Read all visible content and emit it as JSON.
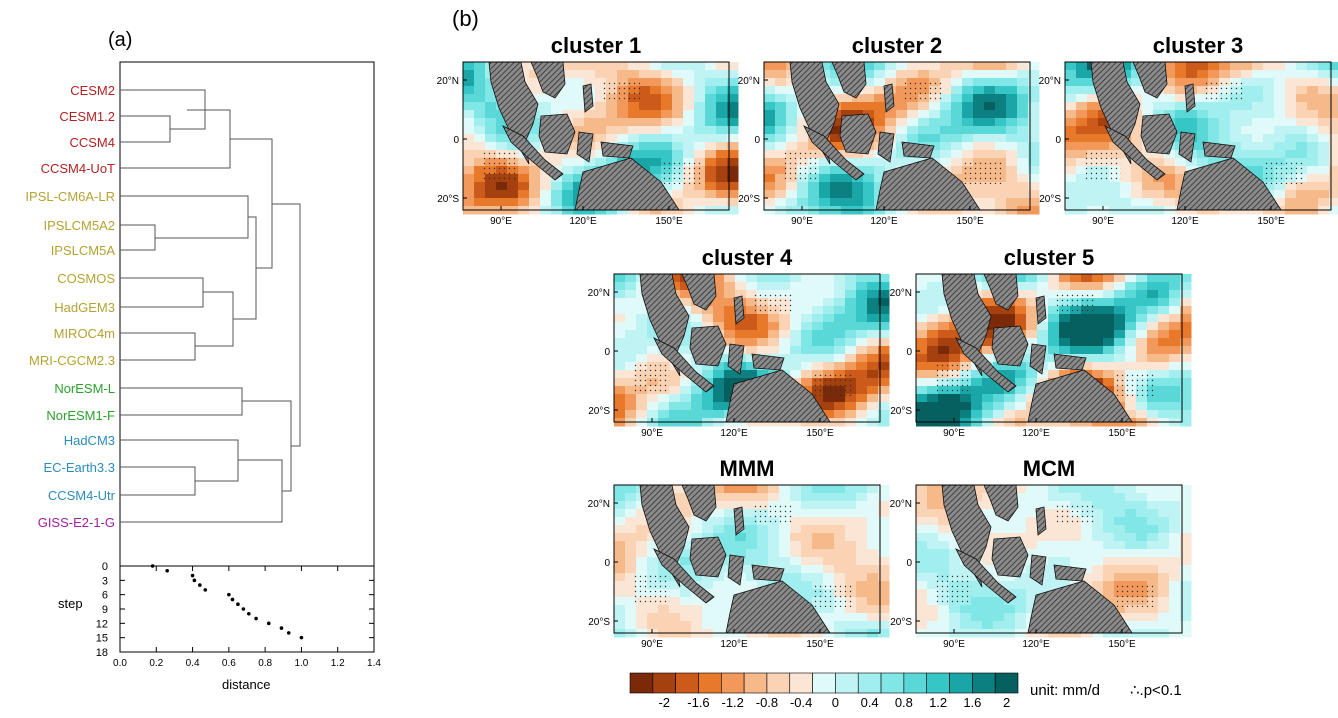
{
  "panel_a": {
    "label": "(a)",
    "models": [
      {
        "name": "CESM2",
        "color": "#b22222"
      },
      {
        "name": "CESM1.2",
        "color": "#b22222"
      },
      {
        "name": "CCSM4",
        "color": "#b22222"
      },
      {
        "name": "CCSM4-UoT",
        "color": "#b22222"
      },
      {
        "name": "IPSL-CM6A-LR",
        "color": "#b4a232"
      },
      {
        "name": "IPSLCM5A2",
        "color": "#b4a232"
      },
      {
        "name": "IPSLCM5A",
        "color": "#b4a232"
      },
      {
        "name": "COSMOS",
        "color": "#b4a232"
      },
      {
        "name": "HadGEM3",
        "color": "#b4a232"
      },
      {
        "name": "MIROC4m",
        "color": "#b4a232"
      },
      {
        "name": "MRI-CGCM2.3",
        "color": "#b4a232"
      },
      {
        "name": "NorESM-L",
        "color": "#2ca02c"
      },
      {
        "name": "NorESM1-F",
        "color": "#2ca02c"
      },
      {
        "name": "HadCM3",
        "color": "#2b8cbe"
      },
      {
        "name": "EC-Earth3.3",
        "color": "#2b8cbe"
      },
      {
        "name": "CCSM4-Utr",
        "color": "#2b8cbe"
      },
      {
        "name": "GISS-E2-1-G",
        "color": "#a020a0"
      }
    ]
  },
  "chart_data": [
    {
      "type": "scatter",
      "title": "",
      "xlabel": "distance",
      "ylabel": "step",
      "xlim": [
        0,
        1.4
      ],
      "ylim": [
        18,
        0
      ],
      "x_ticks": [
        "0.0",
        "0.2",
        "0.4",
        "0.6",
        "0.8",
        "1.0",
        "1.2",
        "1.4"
      ],
      "y_ticks": [
        "0",
        "3",
        "6",
        "9",
        "12",
        "15",
        "18"
      ],
      "points": [
        {
          "x": 0.18,
          "y": 0
        },
        {
          "x": 0.26,
          "y": 1
        },
        {
          "x": 0.4,
          "y": 2
        },
        {
          "x": 0.41,
          "y": 3
        },
        {
          "x": 0.44,
          "y": 4
        },
        {
          "x": 0.47,
          "y": 5
        },
        {
          "x": 0.6,
          "y": 6
        },
        {
          "x": 0.62,
          "y": 7
        },
        {
          "x": 0.65,
          "y": 8
        },
        {
          "x": 0.68,
          "y": 9
        },
        {
          "x": 0.71,
          "y": 10
        },
        {
          "x": 0.75,
          "y": 11
        },
        {
          "x": 0.82,
          "y": 12
        },
        {
          "x": 0.89,
          "y": 13
        },
        {
          "x": 0.93,
          "y": 14
        },
        {
          "x": 1.0,
          "y": 15
        }
      ]
    },
    {
      "type": "heatmap",
      "panel_label": "(b)",
      "maps": [
        {
          "title": "cluster 1"
        },
        {
          "title": "cluster 2"
        },
        {
          "title": "cluster 3"
        },
        {
          "title": "cluster 4"
        },
        {
          "title": "cluster 5"
        },
        {
          "title": "MMM"
        },
        {
          "title": "MCM"
        }
      ],
      "lat_labels": [
        "20°N",
        "0",
        "20°S"
      ],
      "lon_labels": [
        "90°E",
        "120°E",
        "150°E"
      ],
      "colorbar": {
        "tick_labels": [
          "-2",
          "-1.6",
          "-1.2",
          "-0.8",
          "-0.4",
          "0",
          "0.4",
          "0.8",
          "1.2",
          "1.6",
          "2"
        ],
        "colors": [
          "#7a2a08",
          "#a5400f",
          "#cc5a1a",
          "#e8782a",
          "#f2985a",
          "#f6b98a",
          "#f9d3b4",
          "#fbe6d5",
          "#e0fafa",
          "#c0f4f4",
          "#a0eeee",
          "#80e6e6",
          "#5ad8d8",
          "#36c6c6",
          "#1aa6a6",
          "#0c8080",
          "#066060"
        ],
        "unit_label": "unit: mm/d",
        "significance_label": "∴.p<0.1"
      }
    }
  ]
}
